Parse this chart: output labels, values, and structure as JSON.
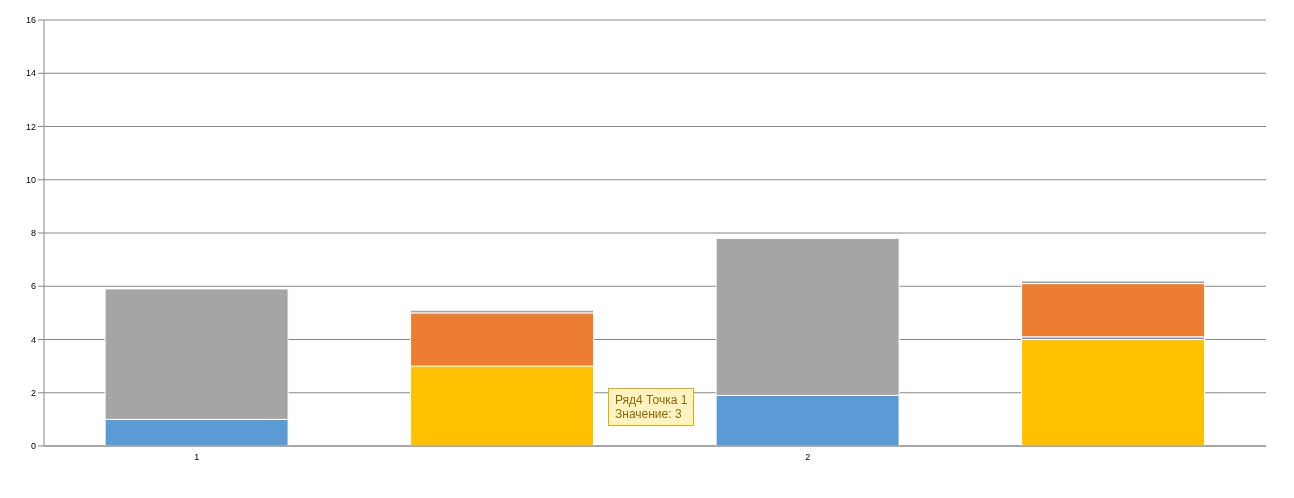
{
  "chart_data": {
    "type": "bar",
    "stacked": true,
    "categories": [
      "1",
      null,
      "2",
      null
    ],
    "series": [
      {
        "color": "#ffc000",
        "values": [
          null,
          3,
          null,
          4
        ]
      },
      {
        "color": "#5b9bd5",
        "values": [
          1,
          null,
          1.9,
          0.1
        ]
      },
      {
        "color": "#ed7d31",
        "values": [
          null,
          2,
          null,
          2
        ]
      },
      {
        "color": "#a5a5a5",
        "values": [
          4.9,
          0.1,
          5.9,
          0.1
        ]
      }
    ],
    "ylim": [
      0,
      16
    ],
    "yticks": [
      0,
      2,
      4,
      6,
      8,
      10,
      12,
      14,
      16
    ],
    "grid": "y",
    "legend": false,
    "annotations": [
      "Ряд4 Точка 1\nЗначение: 3"
    ]
  }
}
